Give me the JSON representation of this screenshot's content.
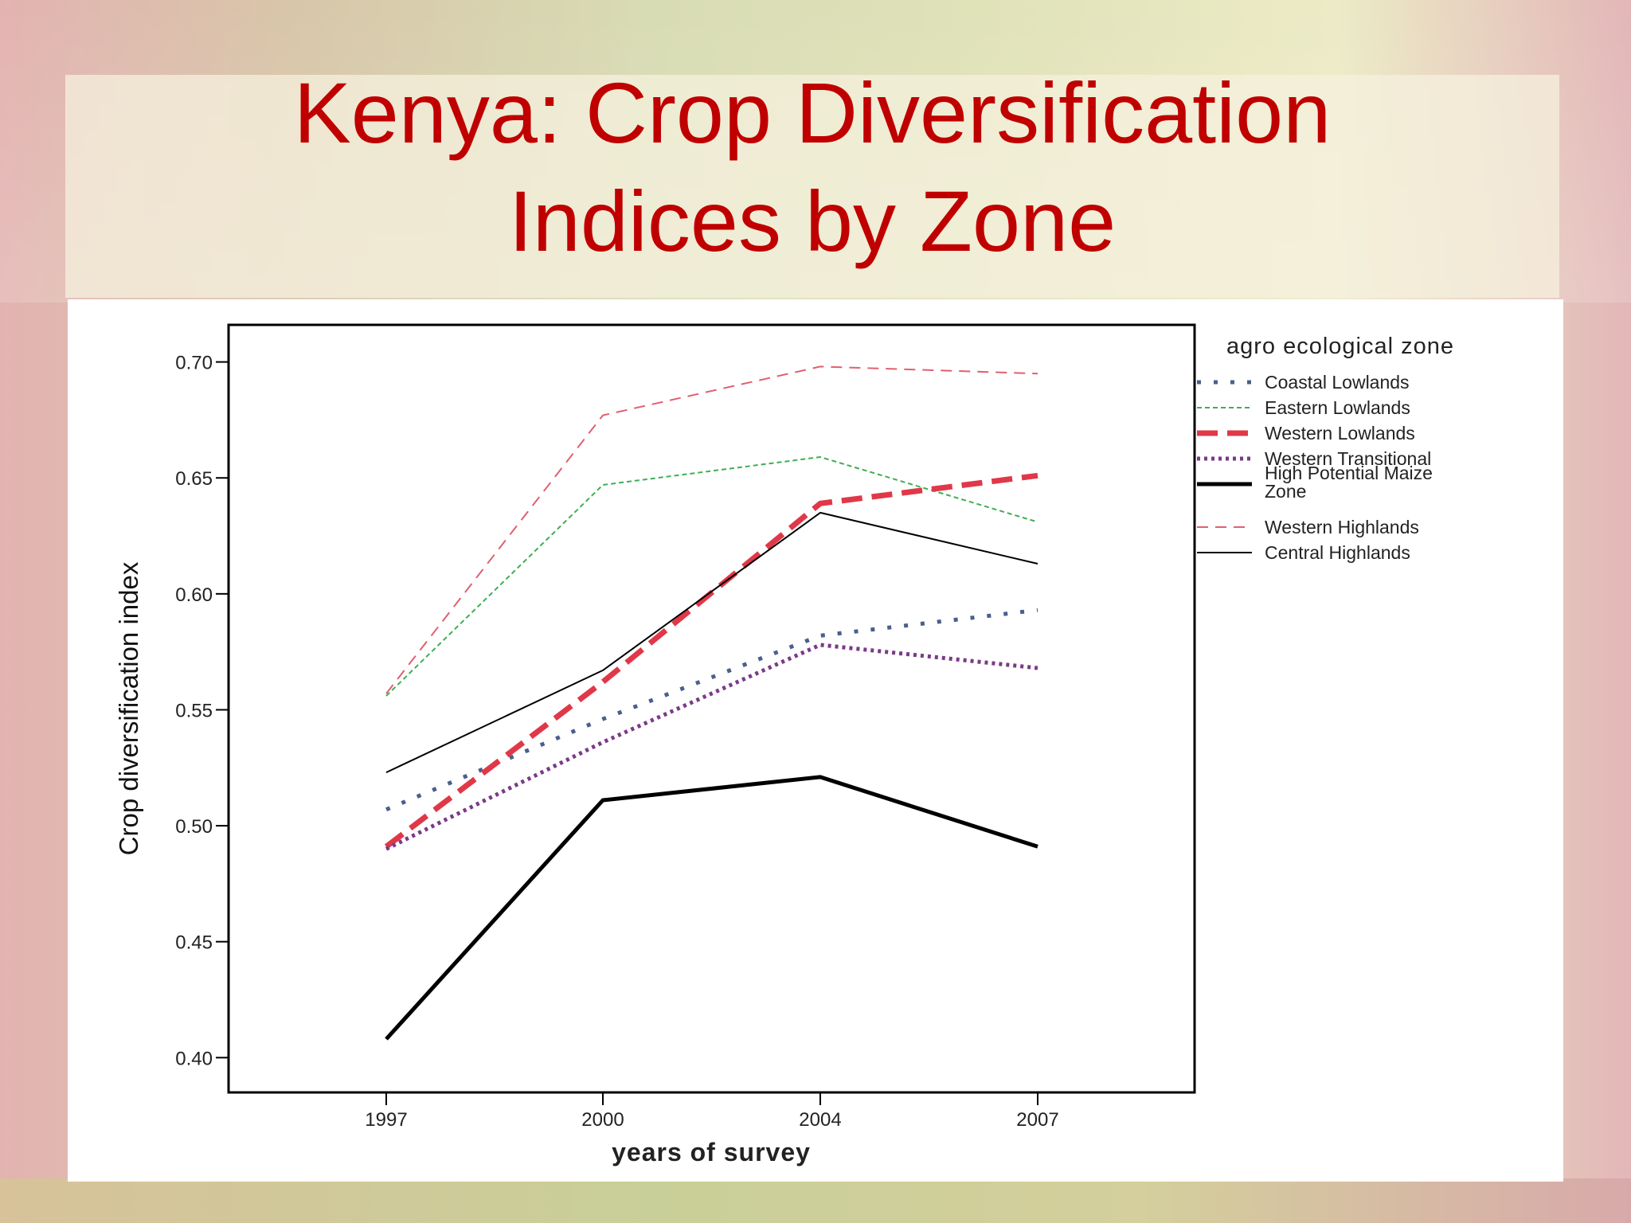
{
  "slide": {
    "title_line1": "Kenya: Crop Diversification",
    "title_line2": "Indices by Zone"
  },
  "colors": {
    "title": "#c00000",
    "background": "#dcd9b3"
  },
  "chart_data": {
    "type": "line",
    "title": "",
    "xlabel": "years of survey",
    "ylabel": "Crop diversification index",
    "categories": [
      "1997",
      "2000",
      "2004",
      "2007"
    ],
    "ylim": [
      0.385,
      0.716
    ],
    "yticks": [
      "0.40",
      "0.45",
      "0.50",
      "0.55",
      "0.60",
      "0.65",
      "0.70"
    ],
    "grid": false,
    "legend_title": "agro ecological zone",
    "legend_position": "right",
    "series": [
      {
        "name": "Coastal Lowlands",
        "values": [
          0.507,
          0.546,
          0.582,
          0.593
        ],
        "color": "#4a5f8c",
        "dash": "dot-large",
        "width": 5
      },
      {
        "name": "Eastern Lowlands",
        "values": [
          0.556,
          0.647,
          0.659,
          0.631
        ],
        "color": "#3fae54",
        "dash": "dash-fine",
        "width": 2
      },
      {
        "name": "Western Lowlands",
        "values": [
          0.491,
          0.562,
          0.639,
          0.651
        ],
        "color": "#e03848",
        "dash": "dash-long",
        "width": 7
      },
      {
        "name": "Western Transitional",
        "values": [
          0.49,
          0.536,
          0.578,
          0.568
        ],
        "color": "#7a3a88",
        "dash": "dot-small",
        "width": 5
      },
      {
        "name": "High Potential Maize Zone",
        "values": [
          0.408,
          0.511,
          0.521,
          0.491
        ],
        "color": "#000000",
        "dash": "solid",
        "width": 5
      },
      {
        "name": "Western Highlands",
        "values": [
          0.557,
          0.677,
          0.698,
          0.695
        ],
        "color": "#e06070",
        "dash": "dash-med",
        "width": 2
      },
      {
        "name": "Central Highlands",
        "values": [
          0.523,
          0.567,
          0.635,
          0.613
        ],
        "color": "#000000",
        "dash": "solid",
        "width": 2
      }
    ]
  }
}
